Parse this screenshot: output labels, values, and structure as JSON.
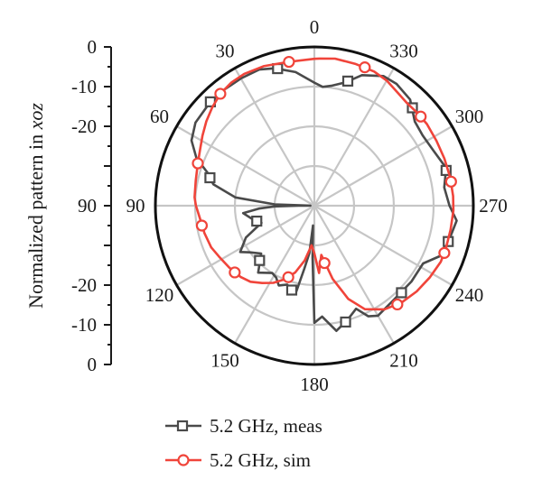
{
  "chart_data": {
    "type": "line",
    "subtype": "polar",
    "ylabel_text": "Normalized pattern in ",
    "ylabel_italic": "xoz",
    "r_axis": {
      "range": [
        -40,
        0
      ],
      "ticks_upper": [
        "0",
        "-10",
        "-20"
      ],
      "center_tick": "90",
      "ticks_lower": [
        "-20",
        "-10",
        "0"
      ]
    },
    "angle_labels": [
      "0",
      "30",
      "60",
      "90",
      "120",
      "150",
      "180",
      "210",
      "240",
      "270",
      "300",
      "330"
    ],
    "angle_direction": "counterclockwise",
    "grid": true,
    "legend_position": "bottom",
    "series": [
      {
        "name": "5.2 GHz, meas",
        "color": "#4a4a4a",
        "marker": "square",
        "angles": [
          0,
          8,
          16,
          22,
          30,
          38,
          45,
          55,
          62,
          68,
          73,
          78,
          84,
          88,
          89,
          90,
          91,
          93,
          96,
          102,
          108,
          115,
          122,
          126,
          132,
          140,
          148,
          152,
          156,
          161,
          165,
          168,
          171,
          174,
          176,
          178,
          180,
          184,
          190,
          196,
          202,
          206,
          210,
          220,
          232,
          242,
          248,
          256,
          264,
          270,
          278,
          286,
          295,
          303,
          310,
          318,
          326,
          332,
          340,
          346,
          352,
          356
        ],
        "values": [
          -9,
          -6,
          -4,
          -3,
          -3,
          -3,
          -3,
          -3.5,
          -5,
          -8,
          -12,
          -14,
          -20,
          -30,
          -39,
          -36,
          -30,
          -26,
          -22,
          -24,
          -26,
          -21,
          -18,
          -20,
          -22,
          -18,
          -20,
          -19.5,
          -18,
          -19,
          -18,
          -17.5,
          -24,
          -28,
          -35,
          -27,
          -10.5,
          -12,
          -8,
          -10,
          -12,
          -9,
          -8,
          -9,
          -9,
          -9,
          -6,
          -5,
          -4,
          -6,
          -7,
          -5.5,
          -7,
          -7.5,
          -7,
          -4,
          -3,
          -3,
          -5,
          -8,
          -9.5,
          -10
        ]
      },
      {
        "name": "5.2 GHz, sim",
        "color": "#f0443a",
        "marker": "circle",
        "angles": [
          0,
          10,
          20,
          28,
          34,
          40,
          46,
          52,
          58,
          64,
          70,
          78,
          86,
          90,
          96,
          104,
          112,
          118,
          126,
          134,
          140,
          146,
          152,
          158,
          164,
          170,
          176,
          180,
          184,
          188,
          194,
          200,
          206,
          214,
          222,
          230,
          238,
          246,
          252,
          260,
          268,
          274,
          282,
          290,
          298,
          306,
          312,
          318,
          324,
          330,
          336,
          344,
          352,
          358
        ],
        "values": [
          -3,
          -3.2,
          -2.6,
          -2.4,
          -2.6,
          -3.2,
          -4.3,
          -5.5,
          -6.8,
          -8,
          -8.8,
          -9.5,
          -9.8,
          -10.2,
          -11,
          -11.5,
          -12,
          -12.8,
          -13.5,
          -14.2,
          -15,
          -16.5,
          -18,
          -20,
          -22.5,
          -26,
          -30,
          -28,
          -23,
          -27.5,
          -21,
          -15,
          -11,
          -8.5,
          -7.2,
          -6.4,
          -5.8,
          -5.2,
          -5.2,
          -5.2,
          -5,
          -5,
          -5.1,
          -5.2,
          -5.2,
          -5,
          -5.1,
          -5.2,
          -4.6,
          -3.6,
          -3,
          -2.8,
          -2.6,
          -2.9
        ]
      }
    ]
  }
}
